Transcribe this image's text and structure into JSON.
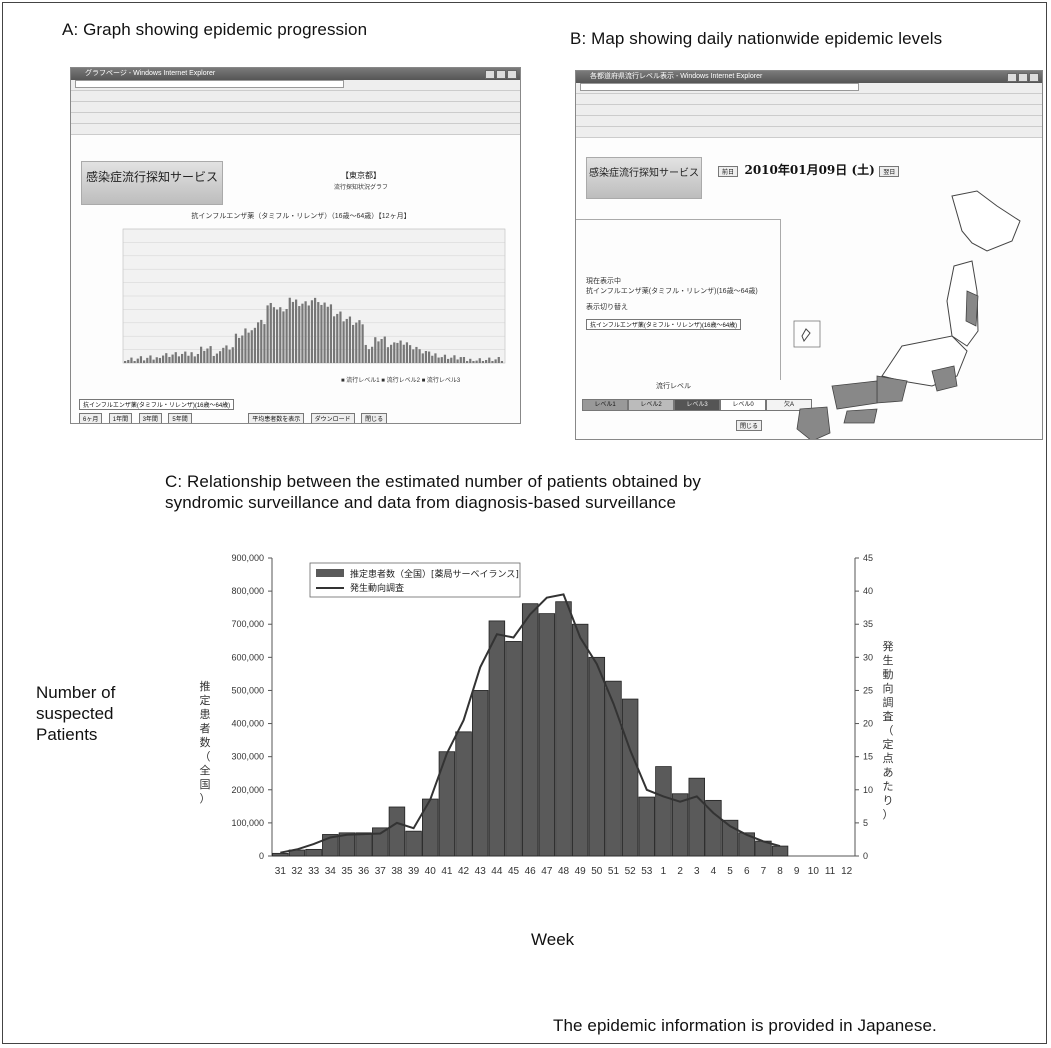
{
  "panels": {
    "a_title": "A: Graph showing epidemic progression",
    "b_title": "B: Map showing daily nationwide epidemic levels",
    "c_title_line1": "C: Relationship between the estimated number of patients obtained by",
    "c_title_line2": "syndromic surveillance and data from diagnosis-based surveillance",
    "footnote": "The epidemic information is provided in Japanese."
  },
  "screenshot_a": {
    "window_title": "グラフページ - Windows Internet Explorer",
    "service_name": "感染症流行探知サービス",
    "region": "【東京都】",
    "graph_subtitle": "流行探知状況グラフ",
    "graph_title": "抗インフルエンザ薬（タミフル・リレンザ）（16歳〜64歳）【12ヶ月】",
    "legend": "■ 流行レベル1 ■ 流行レベル2 ■ 流行レベル3",
    "buttons": [
      "6ヶ月",
      "1年間",
      "3年間",
      "5年間"
    ],
    "select_value": "抗インフルエンザ薬(タミフル・リレンザ)(16歳〜64歳)",
    "avg_button": "平均患者数を表示",
    "download_button": "ダウンロード",
    "close_button": "閉じる"
  },
  "screenshot_b": {
    "window_title": "各都道府県流行レベル表示 - Windows Internet Explorer",
    "service_name": "感染症流行探知サービス",
    "date": "2010年01月09日 (土)",
    "prev": "前日",
    "next": "翌日",
    "current_label": "現在表示中",
    "current_value": "抗インフルエンザ薬(タミフル・リレンザ)(16歳〜64歳)",
    "switch_label": "表示切り替え",
    "level_title": "流行レベル",
    "levels": [
      "レベル1",
      "レベル2",
      "レベル3",
      "レベル0",
      "欠A"
    ],
    "close": "閉じる"
  },
  "chart_data": {
    "type": "bar",
    "categories": [
      "31",
      "32",
      "33",
      "34",
      "35",
      "36",
      "37",
      "38",
      "39",
      "40",
      "41",
      "42",
      "43",
      "44",
      "45",
      "46",
      "47",
      "48",
      "49",
      "50",
      "51",
      "52",
      "53",
      "1",
      "2",
      "3",
      "4",
      "5",
      "6",
      "7",
      "8",
      "9",
      "10",
      "11",
      "12"
    ],
    "series": [
      {
        "name": "推定患者数（全国）[薬局サーベイランス]",
        "type": "bar",
        "axis": "left",
        "values": [
          8000,
          18000,
          20000,
          65000,
          70000,
          70000,
          85000,
          148000,
          75000,
          172000,
          315000,
          375000,
          500000,
          710000,
          648000,
          762000,
          732000,
          768000,
          700000,
          600000,
          528000,
          474000,
          178000,
          270000,
          188000,
          235000,
          168000,
          108000,
          70000,
          45000,
          30000,
          0,
          0,
          0,
          0
        ]
      },
      {
        "name": "発生動向調査",
        "type": "line",
        "axis": "right",
        "values": [
          0.5,
          1,
          1.8,
          2.8,
          3.2,
          3.3,
          3.4,
          5,
          4.2,
          8.5,
          15.5,
          20.5,
          28.5,
          33.5,
          33,
          36.5,
          39,
          39.5,
          33,
          29,
          23,
          16,
          10,
          9,
          8.2,
          9,
          6.5,
          4.5,
          3.2,
          2.2,
          1.5,
          null,
          null,
          null,
          null
        ]
      }
    ],
    "ylim": [
      0,
      900000
    ],
    "yticks": [
      "0",
      "100,000",
      "200,000",
      "300,000",
      "400,000",
      "500,000",
      "600,000",
      "700,000",
      "800,000",
      "900,000"
    ],
    "y2lim": [
      0,
      45
    ],
    "y2ticks": [
      "0",
      "5",
      "10",
      "15",
      "20",
      "25",
      "30",
      "35",
      "40",
      "45"
    ],
    "ylabel_en": "Number of suspected Patients",
    "ylabel_jp": "推定患者数（全国）",
    "y2label_jp": "発生動向調査（定点あたり）",
    "xlabel": "Week",
    "bar_color": "#5a5a5a",
    "line_color": "#333333"
  }
}
